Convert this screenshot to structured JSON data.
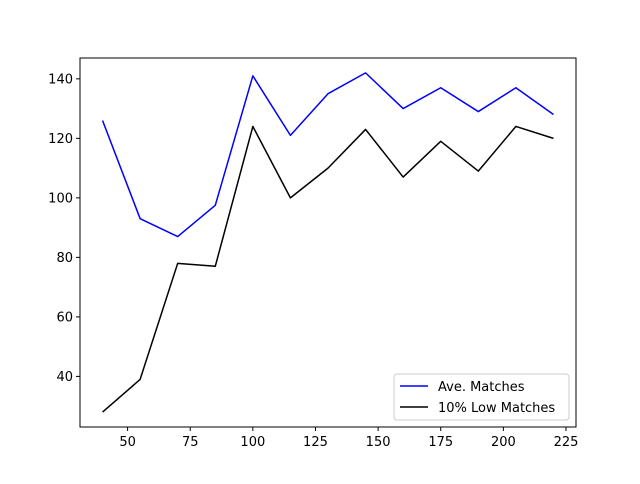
{
  "chart_data": {
    "type": "line",
    "xlim": [
      31,
      229
    ],
    "ylim": [
      23,
      147
    ],
    "xticks": [
      50,
      75,
      100,
      125,
      150,
      175,
      200,
      225
    ],
    "yticks": [
      40,
      60,
      80,
      100,
      120,
      140
    ],
    "grid": false,
    "legend_position": "lower-right",
    "series": [
      {
        "name": "Ave. Matches",
        "color": "#0000ff",
        "x": [
          40,
          55,
          70,
          85,
          100,
          115,
          130,
          145,
          160,
          175,
          190,
          205,
          220
        ],
        "y": [
          126,
          93,
          87,
          97.5,
          141,
          121,
          135,
          142,
          130,
          137,
          129,
          137,
          128
        ]
      },
      {
        "name": "10% Low Matches",
        "color": "#000000",
        "x": [
          40,
          55,
          70,
          85,
          100,
          115,
          130,
          145,
          160,
          175,
          190,
          205,
          220
        ],
        "y": [
          28,
          39,
          78,
          77,
          124,
          100,
          110,
          123,
          107,
          119,
          109,
          124,
          120
        ]
      }
    ]
  }
}
